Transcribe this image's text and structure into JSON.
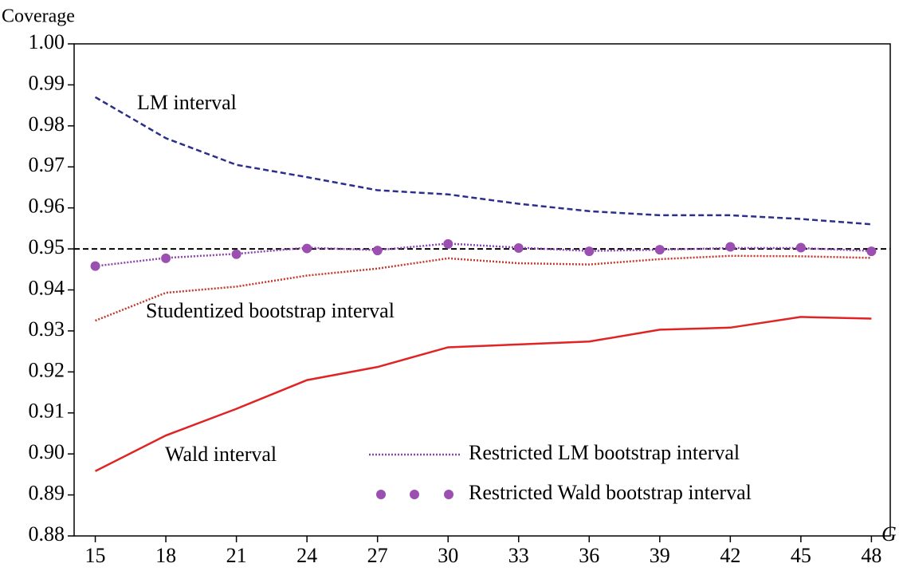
{
  "chart_data": {
    "type": "line",
    "y_label": "Coverage",
    "x_label": "G",
    "x": [
      15,
      18,
      21,
      24,
      27,
      30,
      33,
      36,
      39,
      42,
      45,
      48
    ],
    "xlim": [
      14.1,
      48.8
    ],
    "xticks": [
      15,
      18,
      21,
      24,
      27,
      30,
      33,
      36,
      39,
      42,
      45,
      48
    ],
    "ylim": [
      0.88,
      1.0
    ],
    "yticks": [
      0.88,
      0.89,
      {
        "value": 0.9,
        "label": "0.90"
      },
      0.91,
      0.92,
      0.93,
      0.94,
      0.95,
      0.96,
      0.97,
      0.98,
      0.99,
      {
        "value": 1.0,
        "label": "1.00"
      }
    ],
    "reference_line": {
      "value": 0.95,
      "color": "#000000",
      "style": "dashed"
    },
    "series": [
      {
        "name": "LM interval",
        "color": "#2b2f8c",
        "style": "dashed",
        "legend": false,
        "values": [
          0.987,
          0.977,
          0.9705,
          0.9675,
          0.9643,
          0.9633,
          0.961,
          0.9592,
          0.9582,
          0.9582,
          0.9573,
          0.956
        ]
      },
      {
        "name": "Studentized bootstrap interval",
        "color": "#c0392b",
        "style": "dotted",
        "legend": false,
        "values": [
          0.9325,
          0.9393,
          0.9408,
          0.9435,
          0.9452,
          0.9477,
          0.9465,
          0.9462,
          0.9475,
          0.9483,
          0.9482,
          0.9478
        ]
      },
      {
        "name": "Wald interval",
        "color": "#e02424",
        "style": "solid",
        "legend": false,
        "values": [
          0.8958,
          0.9045,
          0.911,
          0.918,
          0.9212,
          0.926,
          0.9267,
          0.9274,
          0.9303,
          0.9308,
          0.9334,
          0.933
        ]
      },
      {
        "name": "Restricted LM bootstrap interval",
        "color": "#8e44ad",
        "style": "dotted",
        "legend": true,
        "values": [
          0.9458,
          0.9478,
          0.9488,
          0.9503,
          0.9497,
          0.9513,
          0.9503,
          0.9495,
          0.9498,
          0.9502,
          0.9502,
          0.9495
        ]
      },
      {
        "name": "Restricted Wald bootstrap interval",
        "color": "#9b4fb0",
        "style": "markers",
        "legend": true,
        "values": [
          0.9458,
          0.9477,
          0.9487,
          0.9501,
          0.9496,
          0.9512,
          0.9502,
          0.9494,
          0.9498,
          0.9505,
          0.9503,
          0.9494
        ]
      }
    ]
  }
}
